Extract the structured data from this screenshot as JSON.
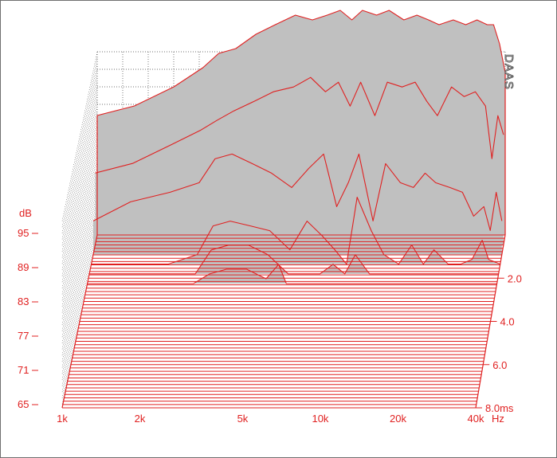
{
  "chart_data": {
    "type": "waterfall",
    "brand": "DAAS",
    "y_axis": {
      "unit_label": "dB",
      "ticks": [
        "95",
        "89",
        "83",
        "77",
        "71",
        "65"
      ],
      "range": [
        65,
        95
      ]
    },
    "x_axis": {
      "ticks": [
        "1k",
        "2k",
        "5k",
        "10k",
        "20k",
        "40k"
      ],
      "tick_values": [
        1000,
        2000,
        5000,
        10000,
        20000,
        40000
      ],
      "unit": "Hz",
      "scale": "log"
    },
    "z_axis": {
      "ticks": [
        "2.0",
        "4.0",
        "6.0",
        "8.0ms"
      ],
      "tick_values": [
        2.0,
        4.0,
        6.0,
        8.0
      ],
      "range": [
        0,
        8.0
      ]
    },
    "colors": {
      "line": "#e02020",
      "fill": "#c0c0c0",
      "grid": "#444444"
    },
    "series": [
      {
        "t": 0.0,
        "points": [
          [
            1000,
            90
          ],
          [
            1400,
            92
          ],
          [
            2000,
            96
          ],
          [
            2600,
            100
          ],
          [
            3000,
            103
          ],
          [
            3500,
            104
          ],
          [
            4200,
            107
          ],
          [
            5000,
            109
          ],
          [
            6000,
            111
          ],
          [
            7000,
            110
          ],
          [
            8000,
            111
          ],
          [
            9000,
            112
          ],
          [
            10000,
            110
          ],
          [
            11000,
            112
          ],
          [
            12500,
            111
          ],
          [
            14000,
            112
          ],
          [
            16000,
            110
          ],
          [
            18000,
            111
          ],
          [
            20000,
            110
          ],
          [
            22000,
            109
          ],
          [
            25000,
            110
          ],
          [
            28000,
            109
          ],
          [
            31000,
            110
          ],
          [
            34000,
            109
          ],
          [
            36000,
            109
          ],
          [
            38000,
            105
          ],
          [
            40000,
            99
          ]
        ]
      },
      {
        "t": 0.45,
        "points": [
          [
            1000,
            80
          ],
          [
            1400,
            82
          ],
          [
            2000,
            86
          ],
          [
            2600,
            89
          ],
          [
            3000,
            91
          ],
          [
            3500,
            93
          ],
          [
            4200,
            95
          ],
          [
            5000,
            97
          ],
          [
            6000,
            98
          ],
          [
            7000,
            100
          ],
          [
            8000,
            97
          ],
          [
            9000,
            99
          ],
          [
            10000,
            94
          ],
          [
            11000,
            99
          ],
          [
            12500,
            92
          ],
          [
            14000,
            99
          ],
          [
            16000,
            98
          ],
          [
            18000,
            99
          ],
          [
            20000,
            95
          ],
          [
            22000,
            92
          ],
          [
            25000,
            98
          ],
          [
            28000,
            96
          ],
          [
            31000,
            97
          ],
          [
            34000,
            94
          ],
          [
            36000,
            83
          ],
          [
            38000,
            92
          ],
          [
            40000,
            88
          ]
        ]
      },
      {
        "t": 0.9,
        "points": [
          [
            1000,
            72
          ],
          [
            1400,
            76
          ],
          [
            2000,
            78
          ],
          [
            2600,
            80
          ],
          [
            3000,
            85
          ],
          [
            3500,
            86
          ],
          [
            4200,
            84
          ],
          [
            5000,
            82
          ],
          [
            6000,
            79
          ],
          [
            7000,
            83
          ],
          [
            8000,
            86
          ],
          [
            9000,
            75
          ],
          [
            10000,
            80
          ],
          [
            11000,
            86
          ],
          [
            12500,
            72
          ],
          [
            14000,
            84
          ],
          [
            16000,
            80
          ],
          [
            18000,
            79
          ],
          [
            20000,
            82
          ],
          [
            22000,
            80
          ],
          [
            25000,
            79
          ],
          [
            28000,
            78
          ],
          [
            31000,
            73
          ],
          [
            34000,
            75
          ],
          [
            36000,
            70
          ],
          [
            38000,
            78
          ],
          [
            40000,
            72
          ]
        ]
      },
      {
        "t": 1.35,
        "points": [
          [
            1000,
            65
          ],
          [
            2000,
            65
          ],
          [
            2600,
            67
          ],
          [
            3000,
            73
          ],
          [
            3500,
            74
          ],
          [
            4200,
            73
          ],
          [
            5000,
            72
          ],
          [
            6000,
            68
          ],
          [
            7000,
            74
          ],
          [
            8000,
            71
          ],
          [
            9000,
            68
          ],
          [
            10000,
            65
          ],
          [
            11000,
            79
          ],
          [
            12500,
            72
          ],
          [
            14000,
            67
          ],
          [
            16000,
            65
          ],
          [
            18000,
            69
          ],
          [
            20000,
            65
          ],
          [
            22000,
            68
          ],
          [
            25000,
            65
          ],
          [
            28000,
            65
          ],
          [
            31000,
            66
          ],
          [
            34000,
            70
          ],
          [
            36000,
            66
          ],
          [
            40000,
            65
          ]
        ]
      },
      {
        "t": 1.8,
        "points": [
          [
            1000,
            65
          ],
          [
            2600,
            65
          ],
          [
            3000,
            70
          ],
          [
            3500,
            71
          ],
          [
            4200,
            71
          ],
          [
            5000,
            69
          ],
          [
            6000,
            65
          ],
          [
            8000,
            65
          ],
          [
            9000,
            67
          ],
          [
            10000,
            65
          ],
          [
            11000,
            69
          ],
          [
            12500,
            65
          ],
          [
            40000,
            65
          ]
        ]
      },
      {
        "t": 2.25,
        "points": [
          [
            1000,
            65
          ],
          [
            2600,
            65
          ],
          [
            3000,
            67
          ],
          [
            3500,
            68
          ],
          [
            4200,
            68
          ],
          [
            5000,
            66
          ],
          [
            5600,
            69
          ],
          [
            6000,
            65
          ],
          [
            40000,
            65
          ]
        ]
      }
    ]
  }
}
